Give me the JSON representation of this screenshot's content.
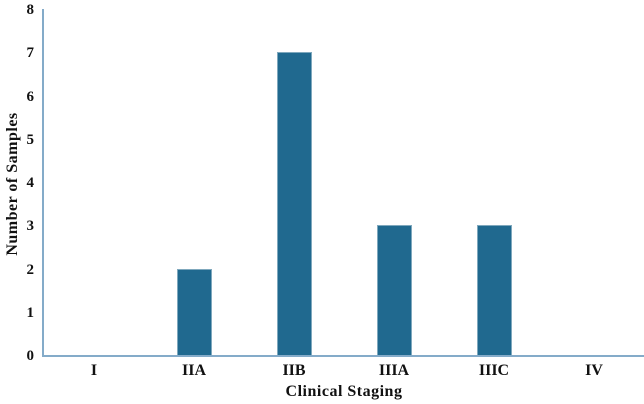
{
  "figure": {
    "background_color": "#ffffff",
    "text_color": "#111111"
  },
  "chart_data": {
    "type": "bar",
    "title": "",
    "categories": [
      "I",
      "IIA",
      "IIB",
      "IIIA",
      "IIIC",
      "IV"
    ],
    "values": [
      0,
      2,
      7,
      3,
      3,
      0
    ],
    "xlabel": "Clinical Staging",
    "ylabel": "Number of Samples",
    "ylim": [
      0,
      8
    ],
    "yticks": [
      0,
      1,
      2,
      3,
      4,
      5,
      6,
      7,
      8
    ],
    "grid": false,
    "legend_position": "none",
    "bar_color": "#20698f",
    "bar_edge_color": "#7fa8bd",
    "axis_color": "#84abc9"
  }
}
